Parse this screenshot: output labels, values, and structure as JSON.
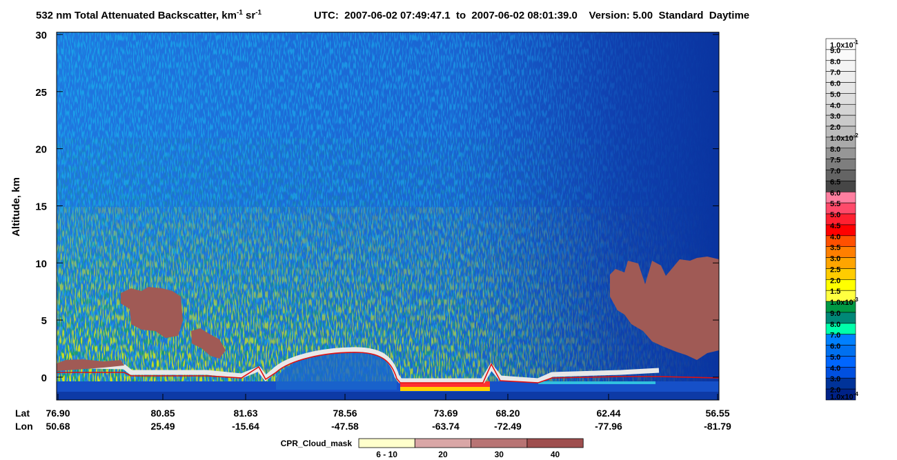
{
  "title": {
    "text": "532 nm Total Attenuated Backscatter, km",
    "sup1": "-1",
    "mid": " sr",
    "sup2": "-1"
  },
  "subtitle": "UTC:  2007-06-02 07:49:47.1  to  2007-06-02 08:01:39.0    Version: 5.00  Standard  Daytime",
  "chart_data": {
    "type": "heatmap",
    "y_label": "Altitude, km",
    "ylim": [
      -2,
      30.2
    ],
    "yticks": [
      0,
      5,
      10,
      15,
      20,
      25,
      30
    ],
    "x_headers": [
      "Lat",
      "Lon"
    ],
    "x_labels": [
      {
        "lat": "76.90",
        "lon": "50.68"
      },
      {
        "lat": "80.85",
        "lon": "25.49"
      },
      {
        "lat": "81.63",
        "lon": "-15.64"
      },
      {
        "lat": "78.56",
        "lon": "-47.58"
      },
      {
        "lat": "73.69",
        "lon": "-63.74"
      },
      {
        "lat": "68.20",
        "lon": "-72.49"
      },
      {
        "lat": "62.44",
        "lon": "-77.96"
      },
      {
        "lat": "56.55",
        "lon": "-81.79"
      }
    ]
  },
  "colorbar": {
    "labels": [
      {
        "label": "1.0x10",
        "sup": "-1"
      },
      {
        "label": "9.0"
      },
      {
        "label": "8.0"
      },
      {
        "label": "7.0"
      },
      {
        "label": "6.0"
      },
      {
        "label": "5.0"
      },
      {
        "label": "4.0"
      },
      {
        "label": "3.0"
      },
      {
        "label": "2.0"
      },
      {
        "label": "1.0x10",
        "sup": "-2"
      },
      {
        "label": "8.0"
      },
      {
        "label": "7.5"
      },
      {
        "label": "7.0"
      },
      {
        "label": "6.5"
      },
      {
        "label": "6.0"
      },
      {
        "label": "5.5"
      },
      {
        "label": "5.0"
      },
      {
        "label": "4.5"
      },
      {
        "label": "4.0"
      },
      {
        "label": "3.5"
      },
      {
        "label": "3.0"
      },
      {
        "label": "2.5"
      },
      {
        "label": "2.0"
      },
      {
        "label": "1.5"
      },
      {
        "label": "1.0x10",
        "sup": "-3"
      },
      {
        "label": "9.0"
      },
      {
        "label": "8.0"
      },
      {
        "label": "7.0"
      },
      {
        "label": "6.0"
      },
      {
        "label": "5.0"
      },
      {
        "label": "4.0"
      },
      {
        "label": "3.0"
      },
      {
        "label": "2.0"
      },
      {
        "label": "1.0x10",
        "sup": "-4"
      }
    ],
    "colors": [
      "#ffffff",
      "#fafafa",
      "#f4f4f4",
      "#eeeeee",
      "#e6e6e6",
      "#dedede",
      "#d4d4d4",
      "#cacaca",
      "#bcbcbc",
      "#aaaaaa",
      "#969696",
      "#7e7e7e",
      "#646464",
      "#464646",
      "#ff7fa0",
      "#ff4a6a",
      "#ff2030",
      "#ff0000",
      "#ff5000",
      "#ff7f00",
      "#ffa500",
      "#ffcc00",
      "#ffff00",
      "#ffff40",
      "#009944",
      "#008877",
      "#00ffaa",
      "#0080ff",
      "#0070f0",
      "#0066ff",
      "#0050e0",
      "#003399",
      "#002288"
    ]
  },
  "cloud_mask": {
    "title": "CPR_Cloud_mask",
    "labels": [
      "6 - 10",
      "20",
      "30",
      "40"
    ],
    "colors": [
      "#ffffcc",
      "#d9a6a6",
      "#b87474",
      "#9e4e4e"
    ]
  }
}
